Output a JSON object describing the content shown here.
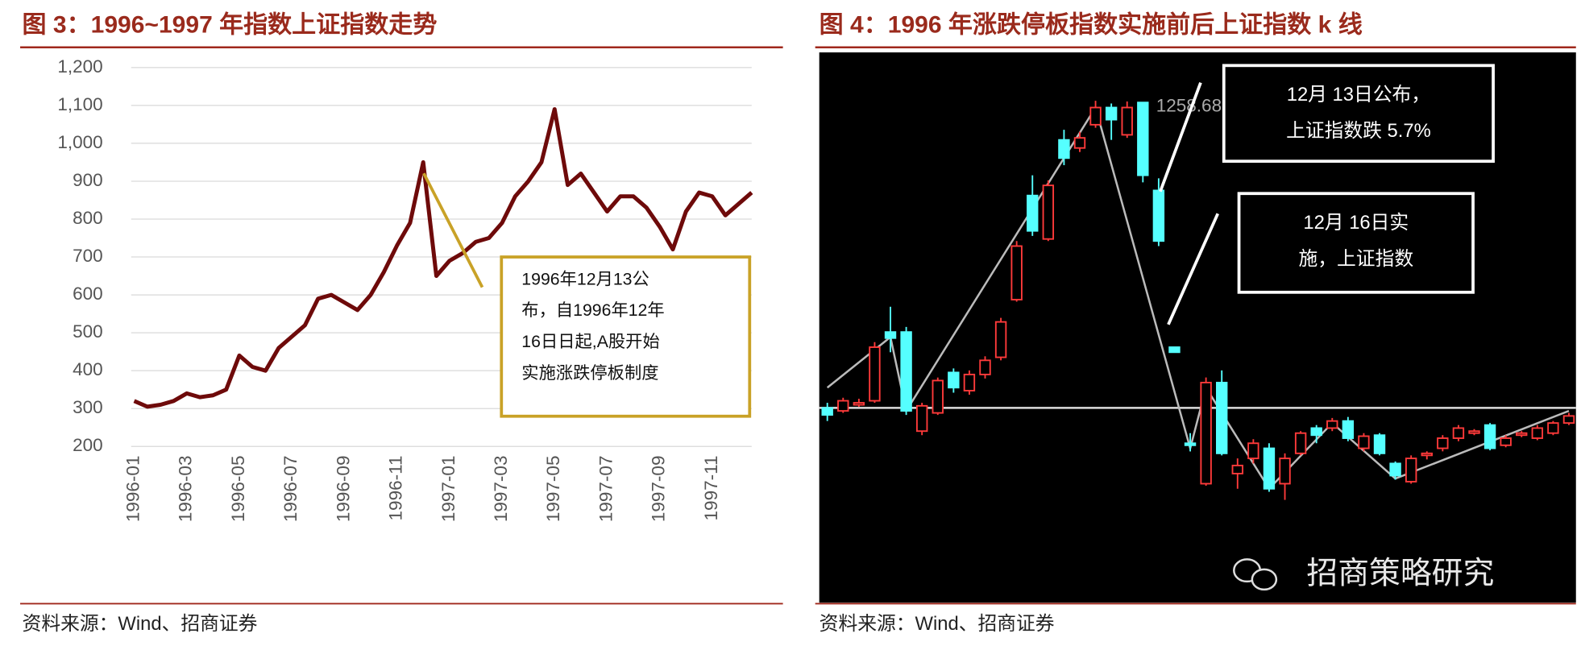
{
  "chart_data": [
    {
      "type": "line",
      "title": "图 3：1996~1997 年指数上证指数走势",
      "source": "资料来源：Wind、招商证券",
      "color": "#6e0a0a",
      "categories": [
        "1996-01",
        null,
        null,
        null,
        "1996-03",
        null,
        null,
        null,
        "1996-05",
        null,
        null,
        null,
        "1996-07",
        null,
        null,
        null,
        "1996-09",
        null,
        null,
        null,
        "1996-11",
        null,
        null,
        null,
        "1997-01",
        null,
        null,
        null,
        "1997-03",
        null,
        null,
        null,
        "1997-05",
        null,
        null,
        null,
        "1997-07",
        null,
        null,
        null,
        "1997-09",
        null,
        null,
        null,
        "1997-11",
        null,
        null,
        null
      ],
      "values": [
        320,
        305,
        310,
        320,
        340,
        330,
        335,
        350,
        440,
        410,
        400,
        460,
        490,
        520,
        590,
        600,
        580,
        560,
        600,
        660,
        730,
        790,
        950,
        650,
        690,
        710,
        740,
        750,
        790,
        860,
        900,
        950,
        1090,
        890,
        920,
        870,
        820,
        860,
        860,
        830,
        780,
        720,
        820,
        870,
        860,
        810,
        840,
        870
      ],
      "ylim": [
        200,
        1200
      ],
      "yticks": [
        200,
        300,
        400,
        500,
        600,
        700,
        800,
        900,
        {
          "value": 1000,
          "label": "1,000"
        },
        {
          "value": 1100,
          "label": "1,100"
        },
        {
          "value": 1200,
          "label": "1,200"
        }
      ],
      "grid": true,
      "annotation": [
        "1996年12月13公",
        "布，自1996年12年",
        "16日日起,A股开始",
        "实施涨跌停板制度"
      ]
    },
    {
      "type": "candlestick",
      "title": "图 4：1996 年涨跌停板指数实施前后上证指数 k 线",
      "source": "资料来源：Wind、招商证券",
      "up_color": "#ff3a3a",
      "down_color": "#55ffff",
      "trend_color": "#bbbbbb",
      "high_label": "1258.68",
      "hline": 955,
      "candles": [
        {
          "open": 955,
          "high": 960,
          "low": 942,
          "close": 948
        },
        {
          "open": 952,
          "high": 965,
          "low": 950,
          "close": 962
        },
        {
          "open": 958,
          "high": 964,
          "low": 956,
          "close": 960
        },
        {
          "open": 962,
          "high": 1020,
          "low": 960,
          "close": 1015
        },
        {
          "open": 1030,
          "high": 1055,
          "low": 1010,
          "close": 1024
        },
        {
          "open": 1030,
          "high": 1035,
          "low": 948,
          "close": 952
        },
        {
          "open": 932,
          "high": 960,
          "low": 928,
          "close": 957
        },
        {
          "open": 950,
          "high": 985,
          "low": 948,
          "close": 982
        },
        {
          "open": 990,
          "high": 994,
          "low": 970,
          "close": 975
        },
        {
          "open": 972,
          "high": 992,
          "low": 968,
          "close": 988
        },
        {
          "open": 988,
          "high": 1006,
          "low": 984,
          "close": 1002
        },
        {
          "open": 1005,
          "high": 1044,
          "low": 1002,
          "close": 1040
        },
        {
          "open": 1062,
          "high": 1120,
          "low": 1060,
          "close": 1115
        },
        {
          "open": 1165,
          "high": 1185,
          "low": 1125,
          "close": 1130
        },
        {
          "open": 1122,
          "high": 1180,
          "low": 1120,
          "close": 1175
        },
        {
          "open": 1220,
          "high": 1230,
          "low": 1195,
          "close": 1202
        },
        {
          "open": 1212,
          "high": 1228,
          "low": 1208,
          "close": 1222
        },
        {
          "open": 1235,
          "high": 1258.68,
          "low": 1232,
          "close": 1252
        },
        {
          "open": 1252,
          "high": 1256,
          "low": 1220,
          "close": 1240
        },
        {
          "open": 1225,
          "high": 1258,
          "low": 1222,
          "close": 1252
        },
        {
          "open": 1257,
          "high": 1257,
          "low": 1178,
          "close": 1185
        },
        {
          "open": 1170,
          "high": 1182,
          "low": 1115,
          "close": 1120
        },
        {
          "open": 1015,
          "high": 1015,
          "low": 1010,
          "close": 1010
        },
        {
          "open": 920,
          "high": 930,
          "low": 912,
          "close": 918
        },
        {
          "open": 880,
          "high": 985,
          "low": 878,
          "close": 980
        },
        {
          "open": 980,
          "high": 992,
          "low": 908,
          "close": 910
        },
        {
          "open": 890,
          "high": 905,
          "low": 875,
          "close": 898
        },
        {
          "open": 905,
          "high": 924,
          "low": 900,
          "close": 920
        },
        {
          "open": 915,
          "high": 920,
          "low": 872,
          "close": 875
        },
        {
          "open": 880,
          "high": 910,
          "low": 864,
          "close": 905
        },
        {
          "open": 910,
          "high": 932,
          "low": 908,
          "close": 930
        },
        {
          "open": 935,
          "high": 938,
          "low": 920,
          "close": 928
        },
        {
          "open": 935,
          "high": 945,
          "low": 932,
          "close": 942
        },
        {
          "open": 942,
          "high": 946,
          "low": 922,
          "close": 925
        },
        {
          "open": 915,
          "high": 930,
          "low": 912,
          "close": 927
        },
        {
          "open": 928,
          "high": 930,
          "low": 908,
          "close": 910
        },
        {
          "open": 900,
          "high": 902,
          "low": 884,
          "close": 888
        },
        {
          "open": 882,
          "high": 908,
          "low": 880,
          "close": 905
        },
        {
          "open": 908,
          "high": 912,
          "low": 904,
          "close": 910
        },
        {
          "open": 915,
          "high": 928,
          "low": 912,
          "close": 925
        },
        {
          "open": 925,
          "high": 938,
          "low": 922,
          "close": 935
        },
        {
          "open": 930,
          "high": 934,
          "low": 928,
          "close": 932
        },
        {
          "open": 938,
          "high": 940,
          "low": 913,
          "close": 915
        },
        {
          "open": 918,
          "high": 928,
          "low": 916,
          "close": 925
        },
        {
          "open": 928,
          "high": 932,
          "low": 926,
          "close": 930
        },
        {
          "open": 925,
          "high": 938,
          "low": 923,
          "close": 935
        },
        {
          "open": 930,
          "high": 942,
          "low": 928,
          "close": 940
        },
        {
          "open": 940,
          "high": 950,
          "low": 938,
          "close": 947
        }
      ],
      "trend": {
        "x": [
          0,
          4,
          5,
          17,
          23,
          24,
          28,
          32,
          36,
          47
        ],
        "values": [
          975,
          1025,
          952,
          1252,
          915,
          975,
          875,
          940,
          885,
          952
        ]
      },
      "callouts": [
        [
          "12月 13日公布，",
          "上证指数跌 5.7%"
        ],
        [
          "12月 16日实",
          "施，上证指数"
        ]
      ],
      "watermark": "招商策略研究"
    }
  ]
}
